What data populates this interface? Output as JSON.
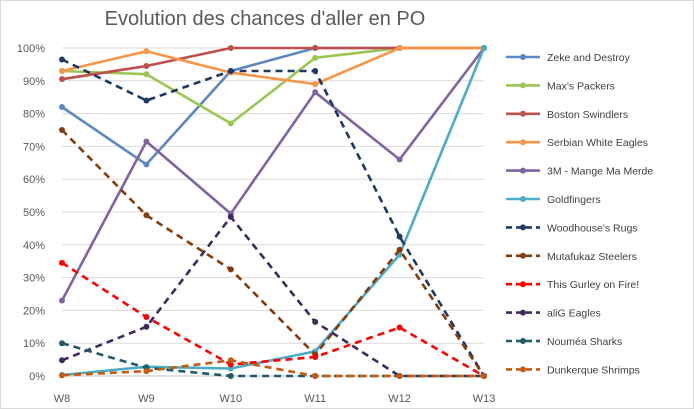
{
  "chart_data": {
    "type": "line",
    "title": "Evolution des chances d'aller en PO",
    "xlabel": "",
    "ylabel": "",
    "categories": [
      "W8",
      "W9",
      "W10",
      "W11",
      "W12",
      "W13"
    ],
    "y_ticks": [
      "0%",
      "10%",
      "20%",
      "30%",
      "40%",
      "50%",
      "60%",
      "70%",
      "80%",
      "90%",
      "100%"
    ],
    "ylim": [
      0,
      100
    ],
    "grid": true,
    "legend_position": "right",
    "series": [
      {
        "name": "Zeke and Destroy",
        "color": "#5b88c0",
        "dash": "solid",
        "values": [
          82,
          64.5,
          93,
          100,
          100,
          100
        ]
      },
      {
        "name": "Max's Packers",
        "color": "#9cc653",
        "dash": "solid",
        "values": [
          93,
          92,
          77,
          97,
          100,
          100
        ]
      },
      {
        "name": "Boston Swindlers",
        "color": "#c0504d",
        "dash": "solid",
        "values": [
          90.5,
          94.5,
          100,
          100,
          100,
          100
        ]
      },
      {
        "name": "Serbian White Eagles",
        "color": "#f79646",
        "dash": "solid",
        "values": [
          93,
          99,
          92.5,
          89,
          100,
          100
        ]
      },
      {
        "name": "3M - Mange Ma Merde",
        "color": "#8064a2",
        "dash": "solid",
        "values": [
          23,
          71.5,
          49.5,
          86.5,
          66,
          100
        ]
      },
      {
        "name": "Goldfingers",
        "color": "#4bacc6",
        "dash": "solid",
        "values": [
          0.3,
          2.8,
          2.3,
          7.5,
          37,
          100
        ]
      },
      {
        "name": "Woodhouse's Rugs",
        "color": "#1f3864",
        "dash": "dash",
        "values": [
          96.5,
          84,
          93,
          93,
          42.5,
          0
        ]
      },
      {
        "name": "Mutafukaz Steelers",
        "color": "#843c0c",
        "dash": "dash",
        "values": [
          75,
          49,
          32.5,
          6.5,
          38.5,
          0
        ]
      },
      {
        "name": "This Gurley on Fire!",
        "color": "#ff0000",
        "dash": "dash",
        "values": [
          34.5,
          18,
          3.5,
          5.8,
          14.8,
          0
        ]
      },
      {
        "name": "aliG Eagles",
        "color": "#3f2a5a",
        "dash": "dash",
        "values": [
          4.8,
          15,
          48.5,
          16.5,
          0,
          0
        ]
      },
      {
        "name": "Nouméa Sharks",
        "color": "#215968",
        "dash": "dash",
        "values": [
          10,
          2.5,
          0,
          0,
          0,
          0
        ]
      },
      {
        "name": "Dunkerque Shrimps",
        "color": "#c55a11",
        "dash": "dash",
        "values": [
          0.2,
          1.5,
          4.8,
          0,
          0,
          0
        ]
      }
    ]
  }
}
